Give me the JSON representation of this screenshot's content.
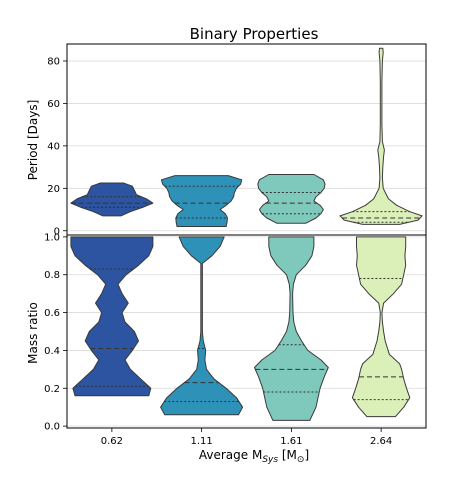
{
  "chart_data": {
    "type": "violin",
    "title": "Binary Properties",
    "xlabel": {
      "main": "Average M",
      "sub": "Sys",
      "unit_open": " [M",
      "unit_sub": "⊙",
      "unit_close": "]"
    },
    "categories": [
      "0.62",
      "1.11",
      "1.61",
      "2.64"
    ],
    "colors": [
      "#2c54a0",
      "#2e91b8",
      "#7ec9bb",
      "#dbefb9"
    ],
    "panels": [
      {
        "id": "period",
        "ylabel": "Period [Days]",
        "ylim": [
          -2,
          88
        ],
        "yticks": [
          0,
          20,
          40,
          60,
          80
        ],
        "grid": true,
        "violins": [
          {
            "category": "0.62",
            "profile": [
              [
                7,
                0.22
              ],
              [
                9,
                0.45
              ],
              [
                11,
                0.75
              ],
              [
                13,
                1.0
              ],
              [
                15,
                0.85
              ],
              [
                17,
                0.6
              ],
              [
                19,
                0.55
              ],
              [
                21,
                0.5
              ],
              [
                22.5,
                0.28
              ]
            ],
            "quartiles": [
              11,
              13,
              16
            ]
          },
          {
            "category": "1.11",
            "profile": [
              [
                2,
                0.6
              ],
              [
                4,
                0.62
              ],
              [
                6,
                0.63
              ],
              [
                8,
                0.58
              ],
              [
                10,
                0.45
              ],
              [
                12,
                0.6
              ],
              [
                14,
                0.72
              ],
              [
                16,
                0.78
              ],
              [
                18,
                0.8
              ],
              [
                20,
                0.85
              ],
              [
                22,
                0.95
              ],
              [
                24,
                0.98
              ],
              [
                26,
                0.65
              ]
            ],
            "quartiles": [
              6,
              13,
              21
            ]
          },
          {
            "category": "1.61",
            "profile": [
              [
                3.5,
                0.35
              ],
              [
                6,
                0.6
              ],
              [
                8,
                0.72
              ],
              [
                10,
                0.78
              ],
              [
                12,
                0.7
              ],
              [
                14,
                0.55
              ],
              [
                16,
                0.6
              ],
              [
                18,
                0.72
              ],
              [
                20,
                0.8
              ],
              [
                22,
                0.82
              ],
              [
                24,
                0.78
              ],
              [
                26.5,
                0.55
              ]
            ],
            "quartiles": [
              8,
              13,
              18
            ]
          },
          {
            "category": "2.64",
            "profile": [
              [
                3,
                0.45
              ],
              [
                5,
                0.9
              ],
              [
                7,
                1.0
              ],
              [
                9,
                0.7
              ],
              [
                12,
                0.38
              ],
              [
                15,
                0.18
              ],
              [
                20,
                0.05
              ],
              [
                25,
                0.03
              ],
              [
                30,
                0.04
              ],
              [
                35,
                0.06
              ],
              [
                38,
                0.08
              ],
              [
                42,
                0.03
              ],
              [
                50,
                0.02
              ],
              [
                60,
                0.02
              ],
              [
                70,
                0.02
              ],
              [
                80,
                0.03
              ],
              [
                84,
                0.05
              ],
              [
                86,
                0.04
              ]
            ],
            "quartiles": [
              4,
              6,
              9
            ]
          }
        ]
      },
      {
        "id": "mass_ratio",
        "ylabel": "Mass ratio",
        "ylim": [
          -0.01,
          1.01
        ],
        "yticks": [
          "0.0",
          "0.2",
          "0.4",
          "0.6",
          "0.8",
          "1.0"
        ],
        "grid": true,
        "violins": [
          {
            "category": "0.62",
            "profile": [
              [
                0.16,
                0.9
              ],
              [
                0.2,
                0.95
              ],
              [
                0.24,
                0.75
              ],
              [
                0.3,
                0.45
              ],
              [
                0.35,
                0.32
              ],
              [
                0.4,
                0.5
              ],
              [
                0.45,
                0.65
              ],
              [
                0.5,
                0.55
              ],
              [
                0.55,
                0.32
              ],
              [
                0.6,
                0.25
              ],
              [
                0.65,
                0.4
              ],
              [
                0.7,
                0.25
              ],
              [
                0.75,
                0.15
              ],
              [
                0.8,
                0.35
              ],
              [
                0.85,
                0.65
              ],
              [
                0.9,
                0.9
              ],
              [
                0.95,
                1.0
              ],
              [
                1.0,
                1.0
              ]
            ],
            "quartiles": [
              0.21,
              0.41,
              0.83
            ]
          },
          {
            "category": "1.11",
            "profile": [
              [
                0.06,
                0.9
              ],
              [
                0.1,
                1.0
              ],
              [
                0.15,
                0.85
              ],
              [
                0.2,
                0.6
              ],
              [
                0.25,
                0.3
              ],
              [
                0.3,
                0.12
              ],
              [
                0.35,
                0.08
              ],
              [
                0.4,
                0.1
              ],
              [
                0.45,
                0.04
              ],
              [
                0.5,
                0.02
              ],
              [
                0.6,
                0.02
              ],
              [
                0.7,
                0.02
              ],
              [
                0.8,
                0.02
              ],
              [
                0.86,
                0.02
              ],
              [
                0.9,
                0.25
              ],
              [
                0.95,
                0.45
              ],
              [
                1.0,
                0.55
              ]
            ],
            "quartiles": [
              0.13,
              0.23,
              0.41
            ]
          },
          {
            "category": "1.61",
            "profile": [
              [
                0.03,
                0.45
              ],
              [
                0.1,
                0.6
              ],
              [
                0.15,
                0.65
              ],
              [
                0.2,
                0.7
              ],
              [
                0.26,
                0.8
              ],
              [
                0.31,
                0.9
              ],
              [
                0.35,
                0.72
              ],
              [
                0.4,
                0.4
              ],
              [
                0.45,
                0.25
              ],
              [
                0.5,
                0.12
              ],
              [
                0.55,
                0.06
              ],
              [
                0.6,
                0.04
              ],
              [
                0.7,
                0.03
              ],
              [
                0.75,
                0.05
              ],
              [
                0.8,
                0.12
              ],
              [
                0.85,
                0.35
              ],
              [
                0.9,
                0.5
              ],
              [
                0.95,
                0.55
              ],
              [
                1.0,
                0.55
              ]
            ],
            "quartiles": [
              0.18,
              0.3,
              0.43
            ]
          },
          {
            "category": "2.64",
            "profile": [
              [
                0.05,
                0.35
              ],
              [
                0.1,
                0.55
              ],
              [
                0.15,
                0.7
              ],
              [
                0.2,
                0.62
              ],
              [
                0.25,
                0.55
              ],
              [
                0.3,
                0.5
              ],
              [
                0.33,
                0.45
              ],
              [
                0.38,
                0.2
              ],
              [
                0.45,
                0.1
              ],
              [
                0.5,
                0.06
              ],
              [
                0.55,
                0.03
              ],
              [
                0.6,
                0.02
              ],
              [
                0.65,
                0.06
              ],
              [
                0.7,
                0.3
              ],
              [
                0.75,
                0.5
              ],
              [
                0.8,
                0.55
              ],
              [
                0.85,
                0.6
              ],
              [
                0.9,
                0.58
              ],
              [
                0.95,
                0.6
              ],
              [
                1.0,
                0.6
              ]
            ],
            "quartiles": [
              0.14,
              0.26,
              0.78
            ]
          }
        ]
      }
    ]
  }
}
